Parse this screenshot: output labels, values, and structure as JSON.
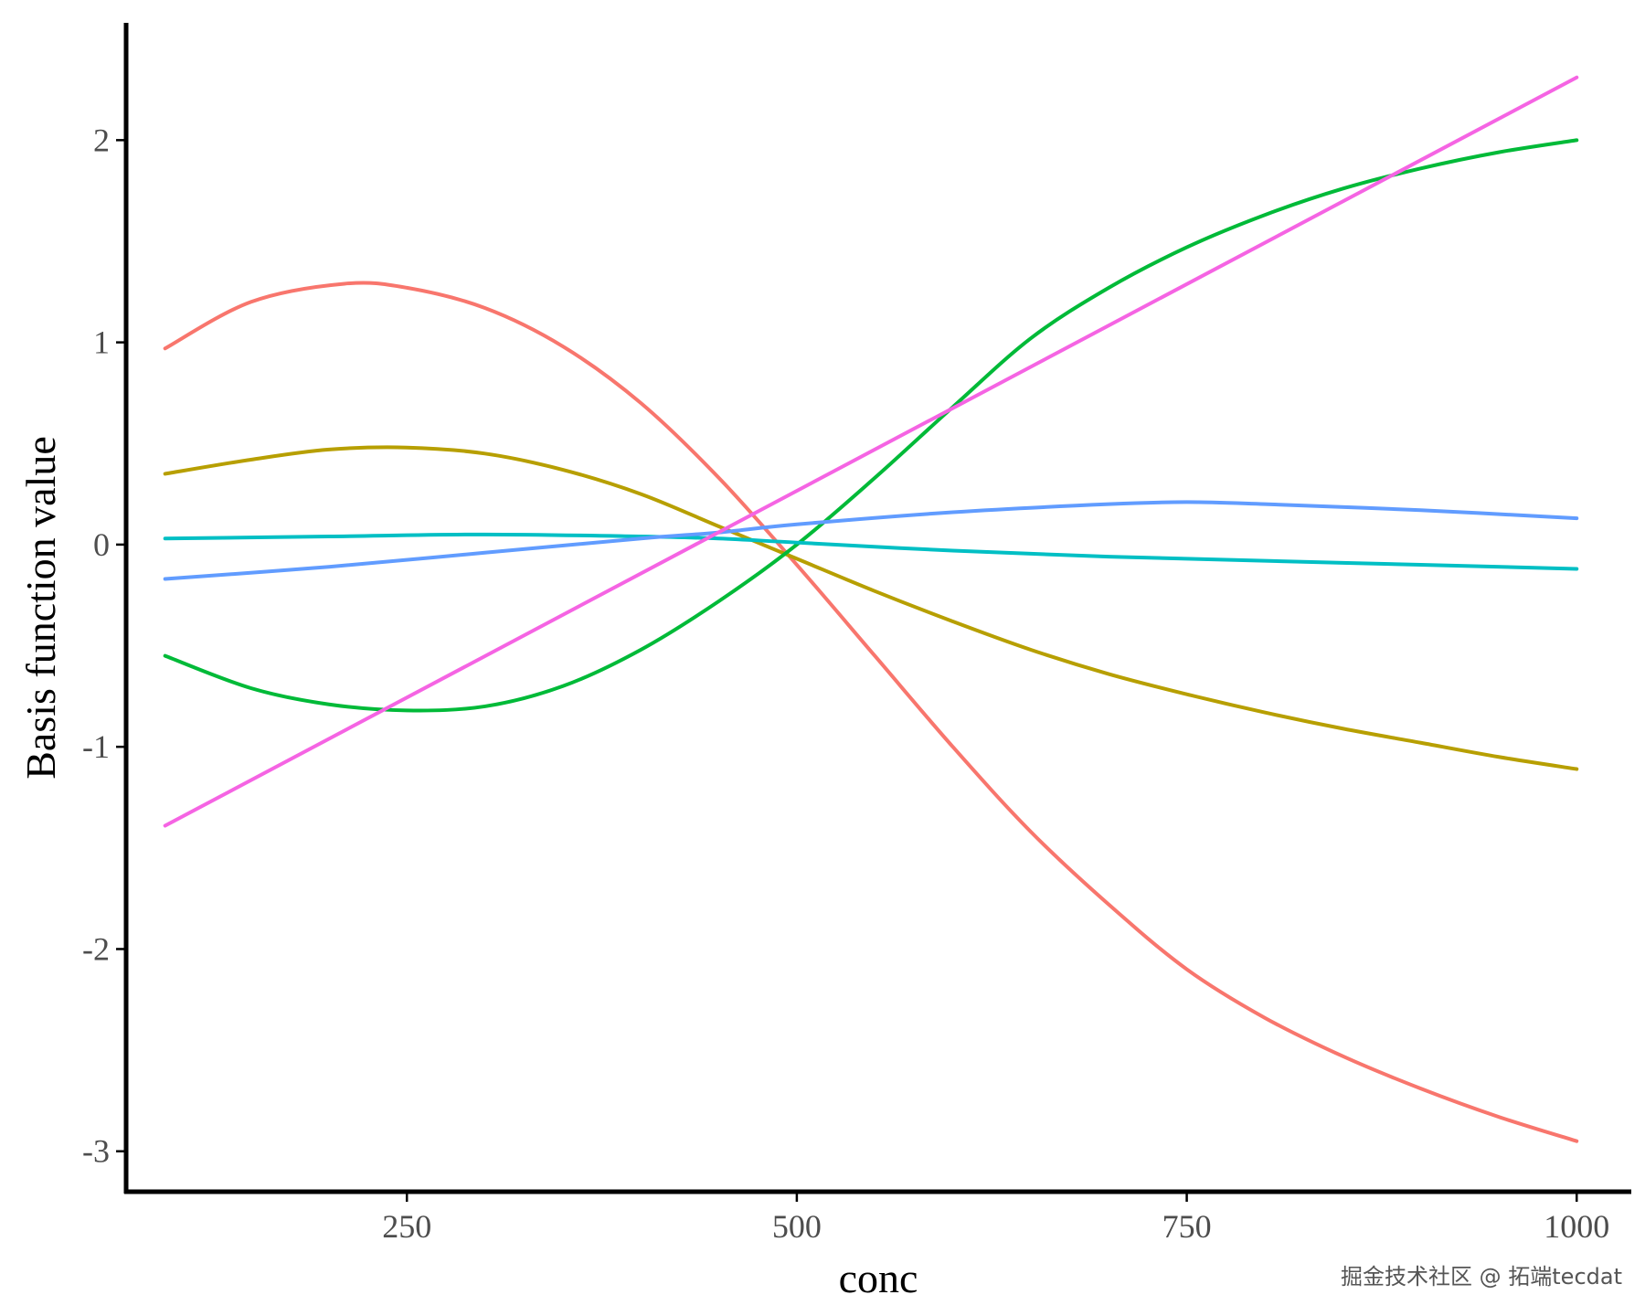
{
  "chart_data": {
    "type": "line",
    "title": "",
    "xlabel": "conc",
    "ylabel": "Basis function value",
    "xlim": [
      70,
      1035
    ],
    "ylim": [
      -3.2,
      2.58
    ],
    "x_ticks": [
      250,
      500,
      750,
      1000
    ],
    "y_ticks": [
      -3,
      -2,
      -1,
      0,
      1,
      2
    ],
    "grid": false,
    "legend": "none",
    "series": [
      {
        "color": "#F8766D",
        "x": [
          95,
          150,
          210,
          250,
          300,
          350,
          400,
          450,
          500,
          550,
          600,
          650,
          700,
          750,
          800,
          850,
          900,
          950,
          1000
        ],
        "values": [
          0.97,
          1.2,
          1.29,
          1.27,
          1.17,
          0.98,
          0.7,
          0.33,
          -0.1,
          -0.55,
          -1.0,
          -1.42,
          -1.78,
          -2.1,
          -2.34,
          -2.53,
          -2.69,
          -2.83,
          -2.95
        ]
      },
      {
        "color": "#B79F00",
        "x": [
          95,
          150,
          200,
          250,
          300,
          350,
          400,
          450,
          500,
          550,
          600,
          650,
          700,
          750,
          800,
          850,
          900,
          950,
          1000
        ],
        "values": [
          0.35,
          0.42,
          0.47,
          0.48,
          0.45,
          0.37,
          0.25,
          0.09,
          -0.07,
          -0.23,
          -0.38,
          -0.52,
          -0.64,
          -0.74,
          -0.83,
          -0.91,
          -0.98,
          -1.05,
          -1.11
        ]
      },
      {
        "color": "#00BA38",
        "x": [
          95,
          150,
          200,
          250,
          300,
          350,
          400,
          450,
          500,
          550,
          600,
          650,
          700,
          750,
          800,
          850,
          900,
          950,
          1000
        ],
        "values": [
          -0.55,
          -0.71,
          -0.79,
          -0.82,
          -0.8,
          -0.7,
          -0.52,
          -0.28,
          0.0,
          0.33,
          0.68,
          1.02,
          1.27,
          1.47,
          1.63,
          1.76,
          1.86,
          1.94,
          2.0
        ]
      },
      {
        "color": "#00BFC4",
        "x": [
          95,
          200,
          300,
          400,
          450,
          500,
          600,
          700,
          800,
          900,
          1000
        ],
        "values": [
          0.03,
          0.04,
          0.05,
          0.04,
          0.03,
          0.01,
          -0.03,
          -0.06,
          -0.08,
          -0.1,
          -0.12
        ]
      },
      {
        "color": "#619CFF",
        "x": [
          95,
          200,
          300,
          400,
          450,
          500,
          600,
          700,
          750,
          800,
          900,
          1000
        ],
        "values": [
          -0.17,
          -0.11,
          -0.04,
          0.03,
          0.06,
          0.1,
          0.16,
          0.2,
          0.21,
          0.2,
          0.17,
          0.13
        ]
      },
      {
        "color": "#F564E3",
        "x": [
          95,
          1000
        ],
        "values": [
          -1.39,
          2.31
        ]
      }
    ]
  },
  "watermark": "掘金技术社区 @ 拓端tecdat"
}
